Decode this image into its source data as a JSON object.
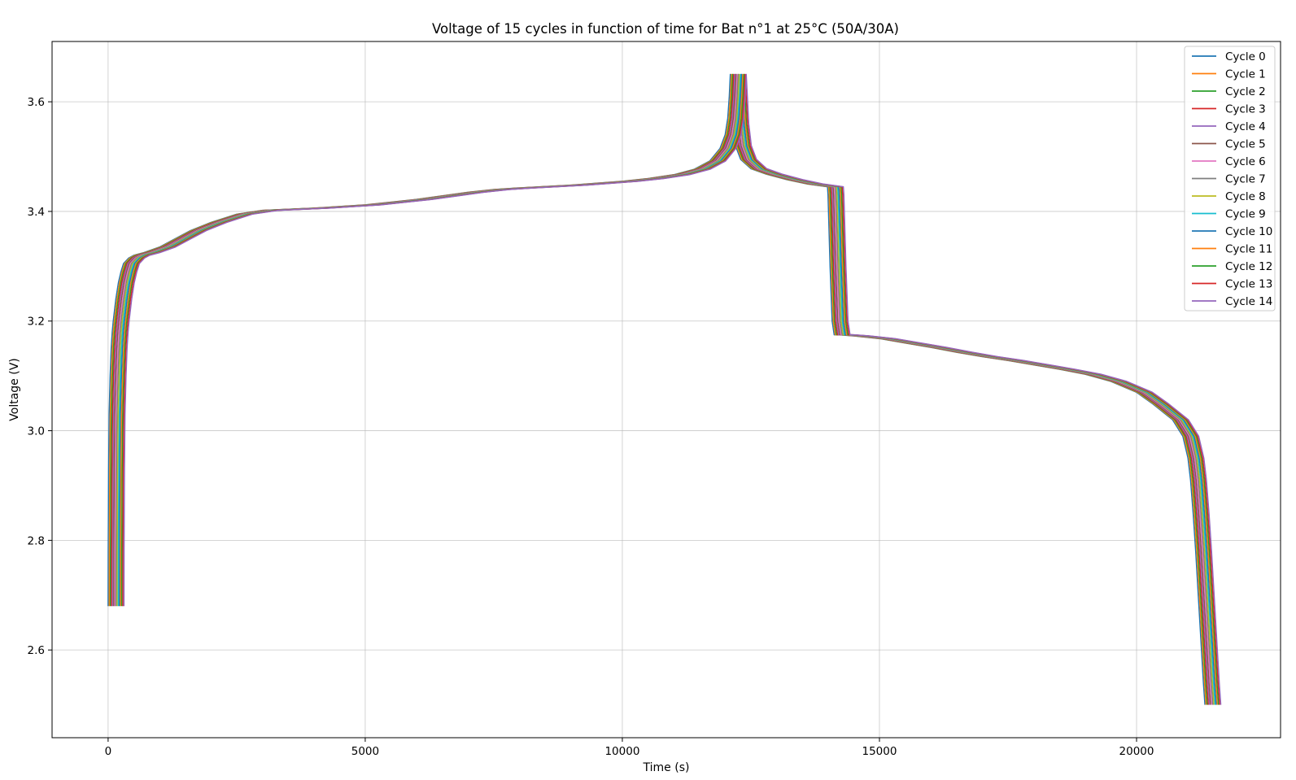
{
  "chart_data": {
    "type": "line",
    "title": "Voltage of 15 cycles in function of time for Bat n°1 at 25°C (50A/30A)",
    "xlabel": "Time (s)",
    "ylabel": "Voltage (V)",
    "xlim": [
      -1090,
      22800
    ],
    "ylim": [
      2.44,
      3.71
    ],
    "xticks": [
      0,
      5000,
      10000,
      15000,
      20000
    ],
    "yticks": [
      2.6,
      2.8,
      3.0,
      3.2,
      3.4,
      3.6
    ],
    "ytick_labels": [
      "2.6",
      "2.8",
      "3.0",
      "3.2",
      "3.4",
      "3.6"
    ],
    "grid": true,
    "legend_position": "top-right",
    "series_shift_per_cycle": 22,
    "base_curve": {
      "x": [
        0,
        2,
        10,
        20,
        40,
        60,
        80,
        100,
        150,
        200,
        250,
        300,
        400,
        500,
        700,
        1000,
        1300,
        1600,
        2000,
        2500,
        3000,
        3500,
        4000,
        5000,
        6000,
        7000,
        7500,
        8000,
        9000,
        10000,
        10500,
        11000,
        11400,
        11700,
        11900,
        12000,
        12050,
        12080,
        12100,
        12101,
        12150,
        12200,
        12300,
        12500,
        12800,
        13200,
        13600,
        13990,
        14000,
        14040,
        14080,
        14120,
        14200,
        14500,
        15000,
        15500,
        16000,
        16500,
        17000,
        17500,
        18000,
        18500,
        19000,
        19500,
        20000,
        20300,
        20500,
        20700,
        20900,
        21000,
        21050,
        21100,
        21150,
        21200,
        21250,
        21300,
        21330
      ],
      "y": [
        2.68,
        2.78,
        2.93,
        3.03,
        3.1,
        3.15,
        3.18,
        3.2,
        3.24,
        3.27,
        3.29,
        3.305,
        3.315,
        3.32,
        3.325,
        3.335,
        3.35,
        3.365,
        3.38,
        3.395,
        3.402,
        3.404,
        3.406,
        3.412,
        3.422,
        3.435,
        3.44,
        3.443,
        3.448,
        3.455,
        3.46,
        3.467,
        3.477,
        3.492,
        3.515,
        3.54,
        3.57,
        3.61,
        3.65,
        3.65,
        3.56,
        3.52,
        3.495,
        3.478,
        3.468,
        3.458,
        3.45,
        3.445,
        3.43,
        3.3,
        3.2,
        3.175,
        3.175,
        3.173,
        3.168,
        3.16,
        3.152,
        3.143,
        3.135,
        3.128,
        3.12,
        3.112,
        3.103,
        3.09,
        3.07,
        3.05,
        3.035,
        3.02,
        2.99,
        2.95,
        2.91,
        2.85,
        2.78,
        2.7,
        2.62,
        2.54,
        2.5
      ]
    },
    "series": [
      {
        "name": "Cycle 0",
        "color": "#1f77b4",
        "offset": 0
      },
      {
        "name": "Cycle 1",
        "color": "#ff7f0e",
        "offset": 1
      },
      {
        "name": "Cycle 2",
        "color": "#2ca02c",
        "offset": 2
      },
      {
        "name": "Cycle 3",
        "color": "#d62728",
        "offset": 3
      },
      {
        "name": "Cycle 4",
        "color": "#9467bd",
        "offset": 4
      },
      {
        "name": "Cycle 5",
        "color": "#8c564b",
        "offset": 5
      },
      {
        "name": "Cycle 6",
        "color": "#e377c2",
        "offset": 6
      },
      {
        "name": "Cycle 7",
        "color": "#7f7f7f",
        "offset": 7
      },
      {
        "name": "Cycle 8",
        "color": "#bcbd22",
        "offset": 8
      },
      {
        "name": "Cycle 9",
        "color": "#17becf",
        "offset": 9
      },
      {
        "name": "Cycle 10",
        "color": "#1f77b4",
        "offset": 10
      },
      {
        "name": "Cycle 11",
        "color": "#ff7f0e",
        "offset": 11
      },
      {
        "name": "Cycle 12",
        "color": "#2ca02c",
        "offset": 12
      },
      {
        "name": "Cycle 13",
        "color": "#d62728",
        "offset": 13
      },
      {
        "name": "Cycle 14",
        "color": "#9467bd",
        "offset": 14
      }
    ]
  }
}
